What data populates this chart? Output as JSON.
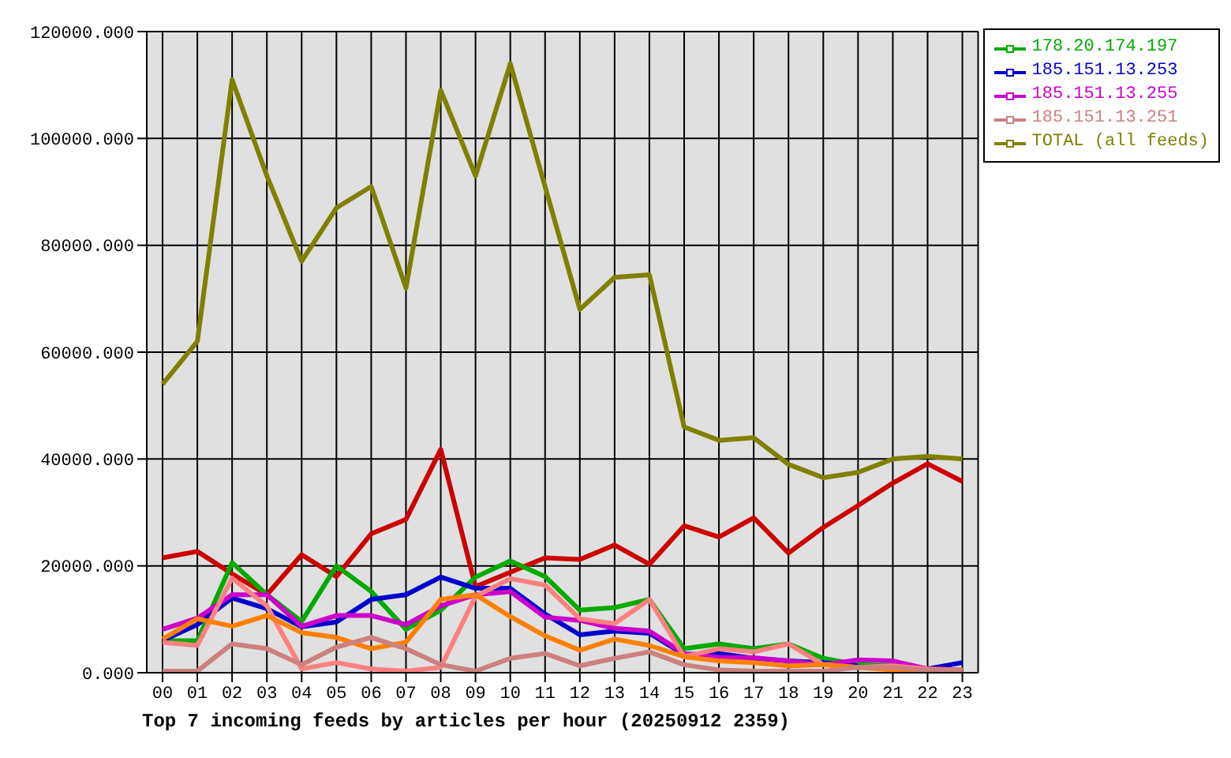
{
  "chart_data": {
    "type": "line",
    "title": "Top 7 incoming feeds by articles per hour (20250912 2359)",
    "categories": [
      "00",
      "01",
      "02",
      "03",
      "04",
      "05",
      "06",
      "07",
      "08",
      "09",
      "10",
      "11",
      "12",
      "13",
      "14",
      "15",
      "16",
      "17",
      "18",
      "19",
      "20",
      "21",
      "22",
      "23"
    ],
    "ylim": [
      0,
      120000
    ],
    "yticks": [
      {
        "value": 0,
        "label": "0.000"
      },
      {
        "value": 20000,
        "label": "20000.000"
      },
      {
        "value": 40000,
        "label": "40000.000"
      },
      {
        "value": 60000,
        "label": "60000.000"
      },
      {
        "value": 80000,
        "label": "80000.000"
      },
      {
        "value": 100000,
        "label": "100000.000"
      },
      {
        "value": 120000,
        "label": "120000.000"
      }
    ],
    "grid": true,
    "legend": "top right",
    "series": [
      {
        "color": "#cc0000",
        "values": [
          21500,
          22700,
          18500,
          14600,
          22100,
          18000,
          26000,
          28700,
          41800,
          16100,
          18800,
          21500,
          21200,
          23900,
          20300,
          27500,
          25400,
          29000,
          22400,
          27200,
          31300,
          35500,
          39100,
          35800
        ]
      },
      {
        "name": "178.20.174.197",
        "color": "#00aa00",
        "values": [
          6000,
          6000,
          20600,
          14600,
          9600,
          20000,
          15200,
          8100,
          11700,
          17900,
          20900,
          18000,
          11700,
          12200,
          13700,
          4500,
          5400,
          4500,
          5400,
          2700,
          1500,
          1300,
          700,
          500
        ]
      },
      {
        "name": "185.151.13.253",
        "color": "#0000cc",
        "values": [
          6000,
          9000,
          14000,
          12000,
          8600,
          9500,
          13700,
          14600,
          17900,
          15800,
          15800,
          11000,
          7100,
          7800,
          7400,
          3400,
          3600,
          2700,
          2200,
          1900,
          1300,
          null,
          700,
          1900
        ]
      },
      {
        "name": "185.151.13.255",
        "color": "#cc00cc",
        "values": [
          8100,
          10200,
          14600,
          14600,
          8700,
          10700,
          10700,
          9000,
          12500,
          14600,
          15200,
          10400,
          9800,
          8300,
          7800,
          3600,
          2900,
          2800,
          2200,
          1500,
          2400,
          2200,
          700,
          500
        ]
      },
      {
        "color": "#ff8080",
        "values": [
          5700,
          5100,
          17700,
          12500,
          700,
          1900,
          700,
          300,
          1000,
          14300,
          17600,
          16400,
          10100,
          9200,
          13700,
          3000,
          4500,
          3900,
          5400,
          1500,
          1000,
          1300,
          700,
          500
        ]
      },
      {
        "color": "#ff8000",
        "values": [
          6300,
          10100,
          8700,
          10700,
          7500,
          6600,
          4500,
          5700,
          13700,
          14600,
          10500,
          6900,
          4200,
          6300,
          5100,
          3000,
          2200,
          1900,
          1300,
          1500,
          1000,
          500,
          500,
          500
        ]
      },
      {
        "name": "185.151.13.251",
        "color": "#cc8080",
        "values": [
          300,
          300,
          5400,
          4500,
          1500,
          4800,
          6600,
          4500,
          1500,
          300,
          2700,
          3600,
          1300,
          2700,
          3900,
          1500,
          500,
          300,
          300,
          300,
          1000,
          1000,
          500,
          500
        ]
      },
      {
        "name": "TOTAL (all feeds)",
        "color": "#808000",
        "values": [
          54000,
          62000,
          111000,
          93000,
          77000,
          87000,
          91000,
          72000,
          109000,
          93000,
          114000,
          91000,
          68000,
          74000,
          74500,
          46000,
          43500,
          44000,
          39000,
          36500,
          37500,
          40000,
          40500,
          40000
        ]
      }
    ]
  }
}
